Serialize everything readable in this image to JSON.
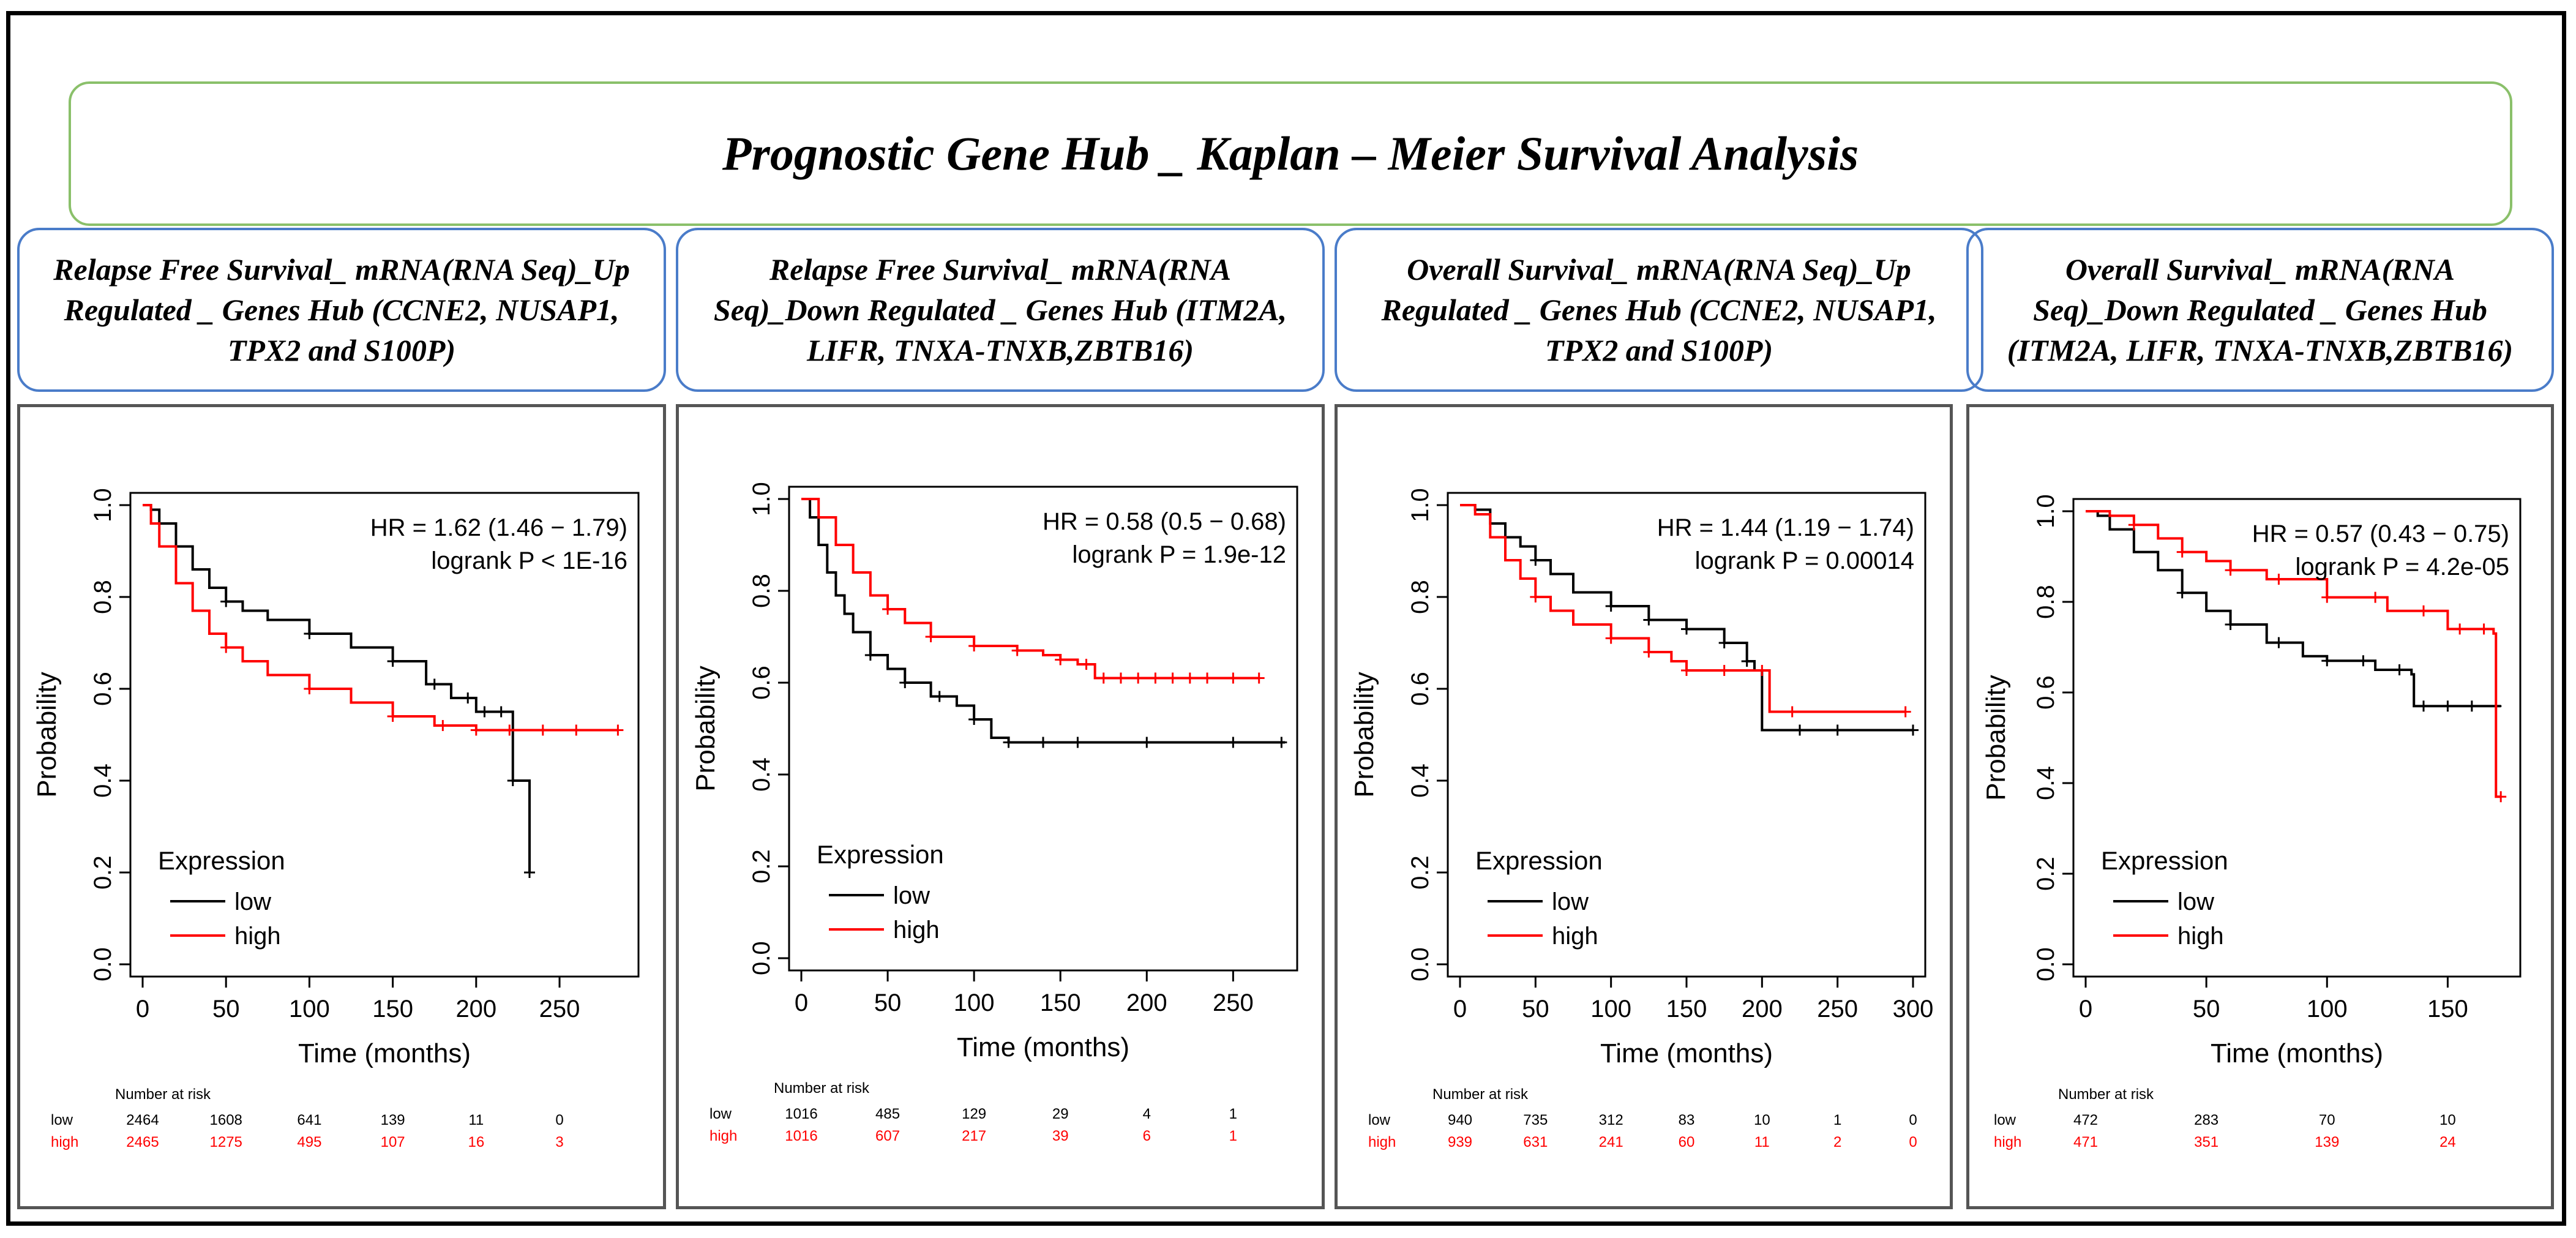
{
  "title": "Prognostic Gene Hub _ Kaplan – Meier Survival Analysis",
  "colors": {
    "low": "#000000",
    "high": "#ff0000",
    "title_border": "#8ac06a",
    "header_border": "#4a7cc9"
  },
  "risk_label": "Number at risk",
  "xlabel": "Time (months)",
  "ylabel": "Probability",
  "legend_title": "Expression",
  "panels": [
    {
      "header": "Relapse Free Survival_ mRNA(RNA Seq)_Up Regulated _ Genes Hub (CCNE2, NUSAP1, TPX2 and S100P)",
      "hr_text": "HR = 1.62 (1.46 − 1.79)",
      "p_text": "logrank P < 1E-16",
      "risk_times": [
        0,
        50,
        100,
        150,
        200,
        250
      ],
      "risk_low": [
        "2464",
        "1608",
        "641",
        "139",
        "11",
        "0"
      ],
      "risk_high": [
        "2465",
        "1275",
        "495",
        "107",
        "16",
        "3"
      ]
    },
    {
      "header": "Relapse Free Survival_ mRNA(RNA Seq)_Down Regulated _ Genes Hub (ITM2A, LIFR, TNXA-TNXB,ZBTB16)",
      "hr_text": "HR = 0.58 (0.5 − 0.68)",
      "p_text": "logrank P = 1.9e-12",
      "risk_times": [
        0,
        50,
        100,
        150,
        200,
        250
      ],
      "risk_low": [
        "1016",
        "485",
        "129",
        "29",
        "4",
        "1"
      ],
      "risk_high": [
        "1016",
        "607",
        "217",
        "39",
        "6",
        "1"
      ]
    },
    {
      "header": "Overall Survival_ mRNA(RNA Seq)_Up Regulated _ Genes Hub (CCNE2, NUSAP1, TPX2 and S100P)",
      "hr_text": "HR = 1.44 (1.19 − 1.74)",
      "p_text": "logrank P = 0.00014",
      "risk_times": [
        0,
        50,
        100,
        150,
        200,
        250,
        300
      ],
      "risk_low": [
        "940",
        "735",
        "312",
        "83",
        "10",
        "1",
        "0"
      ],
      "risk_high": [
        "939",
        "631",
        "241",
        "60",
        "11",
        "2",
        "0"
      ]
    },
    {
      "header": "Overall Survival_ mRNA(RNA Seq)_Down Regulated _ Genes Hub (ITM2A, LIFR, TNXA-TNXB,ZBTB16)",
      "hr_text": "HR = 0.57 (0.43 − 0.75)",
      "p_text": "logrank P = 4.2e-05",
      "risk_times": [
        0,
        50,
        100,
        150
      ],
      "risk_low": [
        "472",
        "283",
        "70",
        "10"
      ],
      "risk_high": [
        "471",
        "351",
        "139",
        "24"
      ]
    }
  ],
  "chart_data": [
    {
      "type": "line",
      "title": "",
      "xlabel": "Time (months)",
      "ylabel": "Probability",
      "xlim": [
        0,
        290
      ],
      "ylim": [
        0,
        1.0
      ],
      "xticks": [
        0,
        50,
        100,
        150,
        200,
        250
      ],
      "yticks": [
        0.0,
        0.2,
        0.4,
        0.6,
        0.8,
        1.0
      ],
      "legend_title": "Expression",
      "legend_position": "bottom-left",
      "series": [
        {
          "name": "low",
          "color": "#000000",
          "x": [
            0,
            5,
            10,
            20,
            30,
            40,
            50,
            60,
            75,
            100,
            125,
            150,
            170,
            185,
            200,
            215,
            222,
            228,
            232
          ],
          "y": [
            1.0,
            0.99,
            0.96,
            0.91,
            0.86,
            0.82,
            0.79,
            0.77,
            0.75,
            0.72,
            0.69,
            0.66,
            0.61,
            0.58,
            0.55,
            0.55,
            0.4,
            0.4,
            0.2
          ],
          "censor_x": [
            50,
            100,
            150,
            175,
            195,
            205,
            215,
            222,
            232
          ]
        },
        {
          "name": "high",
          "color": "#ff0000",
          "x": [
            0,
            5,
            10,
            20,
            30,
            40,
            50,
            60,
            75,
            100,
            125,
            150,
            175,
            200,
            220,
            240,
            260,
            285
          ],
          "y": [
            1.0,
            0.96,
            0.91,
            0.83,
            0.77,
            0.72,
            0.69,
            0.66,
            0.63,
            0.6,
            0.57,
            0.54,
            0.52,
            0.51,
            0.51,
            0.51,
            0.51,
            0.51
          ],
          "censor_x": [
            50,
            100,
            150,
            180,
            200,
            220,
            240,
            260,
            285
          ]
        }
      ]
    },
    {
      "type": "line",
      "title": "",
      "xlabel": "Time (months)",
      "ylabel": "Probability",
      "xlim": [
        0,
        280
      ],
      "ylim": [
        0,
        1.0
      ],
      "xticks": [
        0,
        50,
        100,
        150,
        200,
        250
      ],
      "yticks": [
        0.0,
        0.2,
        0.4,
        0.6,
        0.8,
        1.0
      ],
      "legend_title": "Expression",
      "legend_position": "bottom-left",
      "series": [
        {
          "name": "low",
          "color": "#000000",
          "x": [
            0,
            5,
            10,
            15,
            20,
            25,
            30,
            40,
            50,
            60,
            75,
            90,
            100,
            110,
            120,
            150,
            200,
            280
          ],
          "y": [
            1.0,
            0.96,
            0.9,
            0.84,
            0.79,
            0.75,
            0.71,
            0.66,
            0.63,
            0.6,
            0.57,
            0.55,
            0.52,
            0.48,
            0.47,
            0.47,
            0.47,
            0.47
          ],
          "censor_x": [
            40,
            60,
            80,
            100,
            120,
            140,
            160,
            200,
            250,
            278
          ]
        },
        {
          "name": "high",
          "color": "#ff0000",
          "x": [
            0,
            10,
            20,
            30,
            40,
            50,
            60,
            75,
            100,
            125,
            140,
            150,
            160,
            170,
            200,
            265
          ],
          "y": [
            1.0,
            0.96,
            0.9,
            0.84,
            0.79,
            0.76,
            0.73,
            0.7,
            0.68,
            0.67,
            0.66,
            0.65,
            0.64,
            0.61,
            0.61,
            0.61
          ],
          "censor_x": [
            50,
            75,
            100,
            125,
            150,
            165,
            175,
            185,
            195,
            205,
            215,
            225,
            235,
            250,
            265
          ]
        }
      ]
    },
    {
      "type": "line",
      "title": "",
      "xlabel": "Time (months)",
      "ylabel": "Probability",
      "xlim": [
        0,
        300
      ],
      "ylim": [
        0,
        1.0
      ],
      "xticks": [
        0,
        50,
        100,
        150,
        200,
        250,
        300
      ],
      "yticks": [
        0.0,
        0.2,
        0.4,
        0.6,
        0.8,
        1.0
      ],
      "legend_title": "Expression",
      "legend_position": "bottom-left",
      "series": [
        {
          "name": "low",
          "color": "#000000",
          "x": [
            0,
            10,
            20,
            30,
            40,
            50,
            60,
            75,
            100,
            125,
            150,
            175,
            190,
            195,
            200,
            210,
            300
          ],
          "y": [
            1.0,
            0.99,
            0.96,
            0.93,
            0.91,
            0.88,
            0.85,
            0.81,
            0.78,
            0.75,
            0.73,
            0.7,
            0.66,
            0.64,
            0.51,
            0.51,
            0.51
          ],
          "censor_x": [
            50,
            100,
            125,
            150,
            175,
            190,
            225,
            250,
            300
          ]
        },
        {
          "name": "high",
          "color": "#ff0000",
          "x": [
            0,
            10,
            20,
            30,
            40,
            50,
            60,
            75,
            100,
            125,
            140,
            150,
            175,
            200,
            205,
            220,
            295
          ],
          "y": [
            1.0,
            0.98,
            0.93,
            0.88,
            0.84,
            0.8,
            0.77,
            0.74,
            0.71,
            0.68,
            0.66,
            0.64,
            0.64,
            0.64,
            0.55,
            0.55,
            0.55
          ],
          "censor_x": [
            50,
            100,
            125,
            150,
            175,
            200,
            220,
            295
          ]
        }
      ]
    },
    {
      "type": "line",
      "title": "",
      "xlabel": "Time (months)",
      "ylabel": "Probability",
      "xlim": [
        0,
        175
      ],
      "ylim": [
        0,
        1.0
      ],
      "xticks": [
        0,
        50,
        100,
        150
      ],
      "yticks": [
        0.0,
        0.2,
        0.4,
        0.6,
        0.8,
        1.0
      ],
      "legend_title": "Expression",
      "legend_position": "bottom-left",
      "series": [
        {
          "name": "low",
          "color": "#000000",
          "x": [
            0,
            5,
            10,
            20,
            30,
            40,
            50,
            60,
            75,
            90,
            100,
            120,
            135,
            136,
            150,
            172
          ],
          "y": [
            1.0,
            0.99,
            0.96,
            0.91,
            0.87,
            0.82,
            0.78,
            0.75,
            0.71,
            0.68,
            0.67,
            0.65,
            0.64,
            0.57,
            0.57,
            0.57
          ],
          "censor_x": [
            40,
            60,
            80,
            100,
            115,
            130,
            140,
            150,
            160,
            170
          ]
        },
        {
          "name": "high",
          "color": "#ff0000",
          "x": [
            0,
            10,
            20,
            30,
            40,
            50,
            60,
            75,
            100,
            125,
            150,
            169,
            170,
            172
          ],
          "y": [
            1.0,
            0.99,
            0.97,
            0.94,
            0.91,
            0.89,
            0.87,
            0.85,
            0.81,
            0.78,
            0.74,
            0.73,
            0.37,
            0.37
          ],
          "censor_x": [
            20,
            40,
            60,
            80,
            100,
            120,
            140,
            155,
            165,
            172
          ]
        }
      ]
    }
  ]
}
